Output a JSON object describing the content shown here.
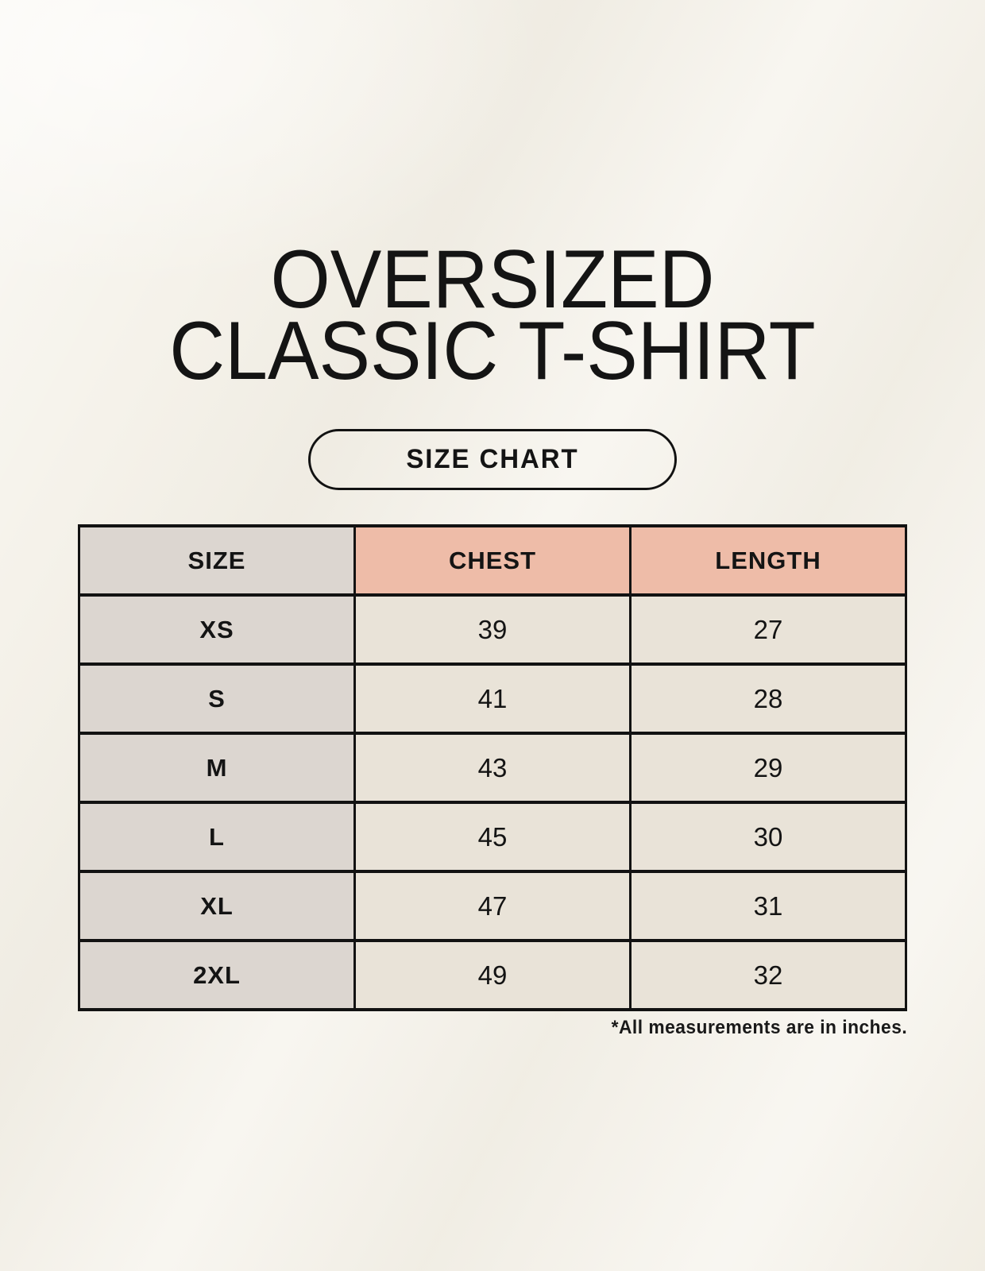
{
  "header": {
    "title_line1": "OVERSIZED",
    "title_line2": "CLASSIC T-SHIRT",
    "button_label": "SIZE CHART"
  },
  "footer": {
    "note": "*All measurements are in inches."
  },
  "colors": {
    "background": "#f5f2ea",
    "size_column": "#dcd6d0",
    "header_accent": "#eebca8",
    "data_cell": "#e9e3d8",
    "border": "#121212",
    "text": "#141414"
  },
  "chart_data": {
    "type": "table",
    "title": "OVERSIZED CLASSIC T-SHIRT — SIZE CHART",
    "units": "inches",
    "columns": [
      "SIZE",
      "CHEST",
      "LENGTH"
    ],
    "rows": [
      [
        "XS",
        39,
        27
      ],
      [
        "S",
        41,
        28
      ],
      [
        "M",
        43,
        29
      ],
      [
        "L",
        45,
        30
      ],
      [
        "XL",
        47,
        31
      ],
      [
        "2XL",
        49,
        32
      ]
    ]
  }
}
